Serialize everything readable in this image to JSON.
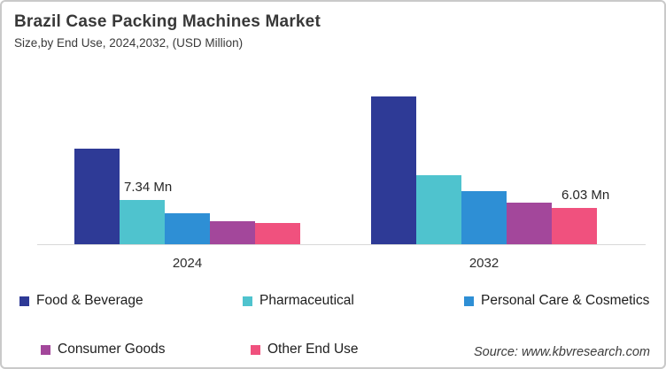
{
  "header": {
    "title": "Brazil Case Packing Machines Market",
    "subtitle": "Size,by End Use, 2024,2032, (USD Million)"
  },
  "source": {
    "text": "Source: www.kbvresearch.com"
  },
  "chart_data": {
    "type": "bar",
    "title": "Brazil Case Packing Machines Market",
    "subtitle": "Size,by End Use, 2024,2032, (USD Million)",
    "unit": "USD Million (Mn)",
    "categories": [
      "2024",
      "2032"
    ],
    "series": [
      {
        "name": "Food & Beverage",
        "color": "#2e3a96",
        "values": [
          15.9,
          24.5
        ]
      },
      {
        "name": "Pharmaceutical",
        "color": "#4fc3ce",
        "values": [
          7.34,
          11.5
        ]
      },
      {
        "name": "Personal Care & Cosmetics",
        "color": "#2e8fd5",
        "values": [
          5.1,
          8.8
        ]
      },
      {
        "name": "Consumer Goods",
        "color": "#a3479b",
        "values": [
          3.8,
          6.9
        ]
      },
      {
        "name": "Other End Use",
        "color": "#f0517e",
        "values": [
          3.5,
          6.03
        ]
      }
    ],
    "annotations": [
      {
        "category_index": 0,
        "series_index": 1,
        "text": "7.34 Mn"
      },
      {
        "category_index": 1,
        "series_index": 4,
        "text": "6.03 Mn"
      }
    ],
    "legend_position": "bottom",
    "grid": false,
    "ylim": [
      0,
      27
    ]
  }
}
